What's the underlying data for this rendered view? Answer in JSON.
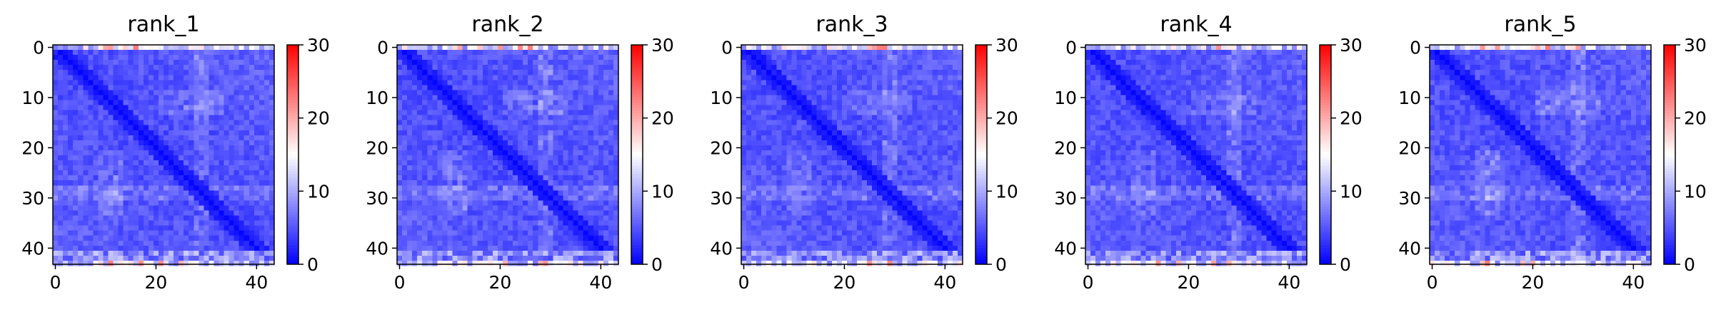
{
  "chart_data": [
    {
      "type": "heatmap",
      "title": "rank_1",
      "n": 44,
      "xticks": [
        0,
        20,
        40
      ],
      "yticks": [
        0,
        10,
        20,
        30,
        40
      ],
      "colorbar": {
        "ticks": [
          0,
          10,
          20,
          30
        ],
        "range": [
          0,
          30
        ],
        "colormap": "bwr"
      }
    },
    {
      "type": "heatmap",
      "title": "rank_2",
      "n": 44,
      "xticks": [
        0,
        20,
        40
      ],
      "yticks": [
        0,
        10,
        20,
        30,
        40
      ],
      "colorbar": {
        "ticks": [
          0,
          10,
          20,
          30
        ],
        "range": [
          0,
          30
        ],
        "colormap": "bwr"
      }
    },
    {
      "type": "heatmap",
      "title": "rank_3",
      "n": 44,
      "xticks": [
        0,
        20,
        40
      ],
      "yticks": [
        0,
        10,
        20,
        30,
        40
      ],
      "colorbar": {
        "ticks": [
          0,
          10,
          20,
          30
        ],
        "range": [
          0,
          30
        ],
        "colormap": "bwr"
      }
    },
    {
      "type": "heatmap",
      "title": "rank_4",
      "n": 44,
      "xticks": [
        0,
        20,
        40
      ],
      "yticks": [
        0,
        10,
        20,
        30,
        40
      ],
      "colorbar": {
        "ticks": [
          0,
          10,
          20,
          30
        ],
        "range": [
          0,
          30
        ],
        "colormap": "bwr"
      }
    },
    {
      "type": "heatmap",
      "title": "rank_5",
      "n": 44,
      "xticks": [
        0,
        20,
        40
      ],
      "yticks": [
        0,
        10,
        20,
        30,
        40
      ],
      "colorbar": {
        "ticks": [
          0,
          10,
          20,
          30
        ],
        "range": [
          0,
          30
        ],
        "colormap": "bwr"
      }
    }
  ],
  "colors": {
    "low": "#0000ff",
    "mid": "#ffffff",
    "high": "#ff0000"
  }
}
